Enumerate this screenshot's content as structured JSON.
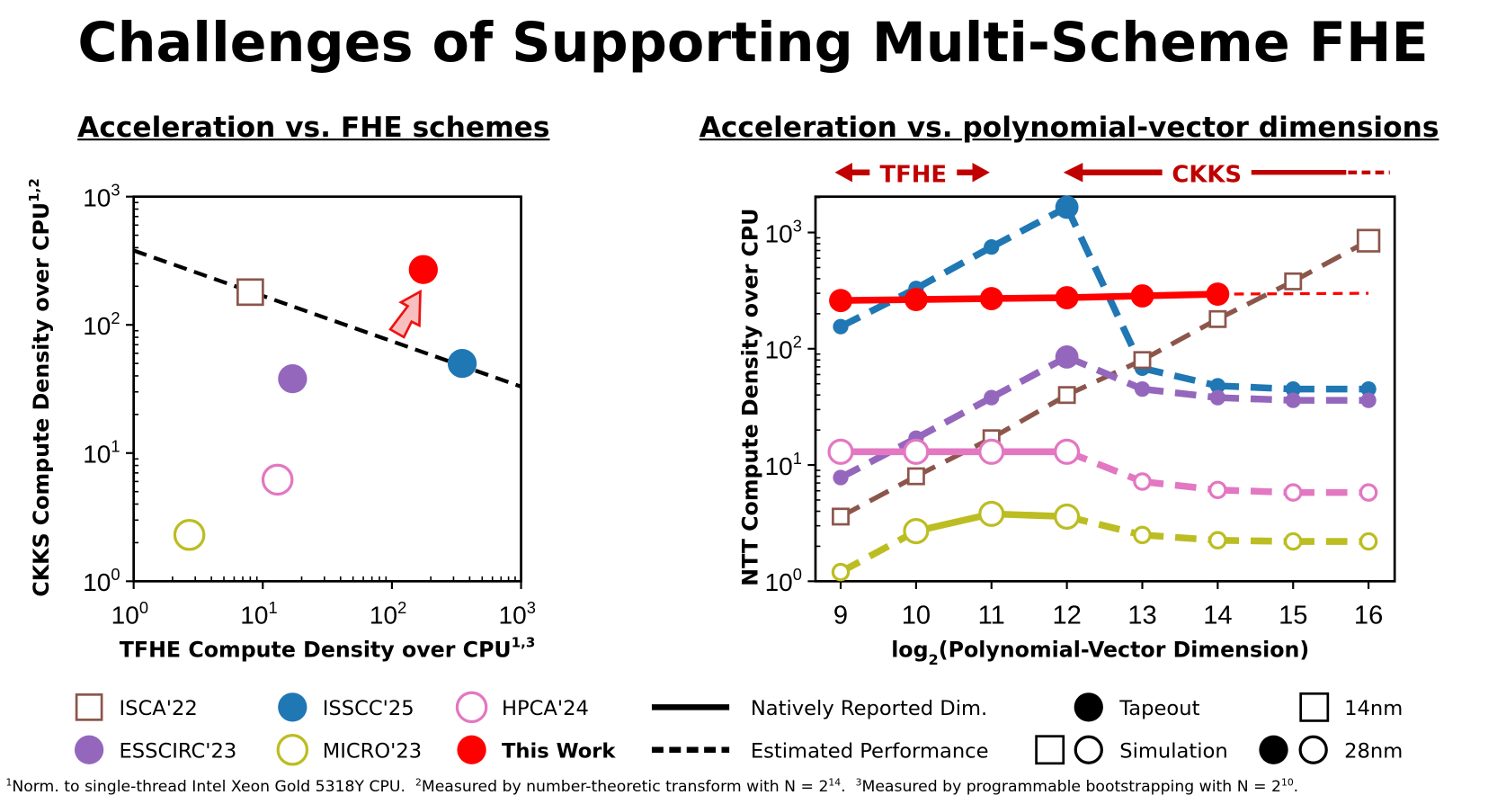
{
  "title": "Challenges of Supporting Multi-Scheme FHE",
  "left_title": "Acceleration vs. FHE schemes",
  "right_title": "Acceleration vs. polynomial-vector dimensions",
  "annot": {
    "tfhe": "TFHE",
    "ckks": "CKKS"
  },
  "colors": {
    "ISCA'22": "#8c564b",
    "ISSCC'25": "#1f77b4",
    "HPCA'24": "#e377c2",
    "ESSCIRC'23": "#9467bd",
    "MICRO'23": "#bcbd22",
    "This Work": "#ff0000"
  },
  "legend": {
    "items": [
      {
        "label": "ISCA'22",
        "marker": "square-open"
      },
      {
        "label": "ISSCC'25",
        "marker": "circle-filled"
      },
      {
        "label": "HPCA'24",
        "marker": "circle-open"
      },
      {
        "label": "ESSCIRC'23",
        "marker": "circle-filled"
      },
      {
        "label": "MICRO'23",
        "marker": "circle-open"
      },
      {
        "label": "This Work",
        "marker": "circle-filled"
      }
    ],
    "native": "Natively Reported Dim.",
    "estimated": "Estimated Performance",
    "tapeout": "Tapeout",
    "simulation": "Simulation",
    "nm14": "14nm",
    "nm28": "28nm"
  },
  "footnote": {
    "n1": "Norm. to single-thread Intel Xeon Gold 5318Y CPU.",
    "n2": "Measured by number-theoretic transform with N = 2",
    "n2exp": "14",
    "n3": "Measured by programmable bootstrapping with N = 2",
    "n3exp": "10",
    "s2": "2",
    "s3": "3"
  },
  "chart_data": [
    {
      "type": "scatter",
      "title": "Acceleration vs. FHE schemes",
      "xlabel": "TFHE Compute Density over CPU",
      "xlabel_sup": "1,3",
      "ylabel": "CKKS Compute Density over CPU",
      "ylabel_sup": "1,2",
      "xscale": "log",
      "yscale": "log",
      "xlim": [
        1,
        1000
      ],
      "ylim": [
        1,
        1000
      ],
      "ticks": [
        "10",
        "10",
        "10",
        "10"
      ],
      "tick_exps": [
        "0",
        "1",
        "2",
        "3"
      ],
      "points": [
        {
          "name": "ISCA'22",
          "x": 8,
          "y": 180,
          "marker": "square-open"
        },
        {
          "name": "ESSCIRC'23",
          "x": 17,
          "y": 38,
          "marker": "circle-filled"
        },
        {
          "name": "HPCA'24",
          "x": 13,
          "y": 6.2,
          "marker": "circle-open"
        },
        {
          "name": "MICRO'23",
          "x": 2.7,
          "y": 2.3,
          "marker": "circle-open"
        },
        {
          "name": "ISSCC'25",
          "x": 350,
          "y": 50,
          "marker": "circle-filled"
        },
        {
          "name": "This Work",
          "x": 175,
          "y": 270,
          "marker": "circle-filled"
        }
      ],
      "trend_line": {
        "x": [
          1,
          1000
        ],
        "y": [
          380,
          33
        ],
        "style": "dashed"
      }
    },
    {
      "type": "line",
      "xlabel": "log2(Polynomial-Vector Dimension)",
      "xlabel_main": "log",
      "xlabel_sub": "2",
      "xlabel_rest": "(Polynomial-Vector Dimension)",
      "ylabel": "NTT Compute Density over CPU",
      "yscale": "log",
      "ylim": [
        1,
        2000
      ],
      "x": [
        9,
        10,
        11,
        12,
        13,
        14,
        15,
        16
      ],
      "series": [
        {
          "name": "ISSCC'25",
          "values": [
            155,
            330,
            750,
            1650,
            68,
            48,
            45,
            45
          ],
          "native": [],
          "marker": "circle-filled"
        },
        {
          "name": "ISCA'22",
          "values": [
            3.6,
            8,
            17,
            40,
            80,
            180,
            380,
            850
          ],
          "native": [],
          "marker": "square-open"
        },
        {
          "name": "ESSCIRC'23",
          "values": [
            7.8,
            17,
            38,
            85,
            45,
            38,
            36,
            36
          ],
          "native": [],
          "marker": "circle-filled"
        },
        {
          "name": "HPCA'24",
          "values": [
            13,
            13,
            13,
            13,
            7.2,
            6.1,
            5.8,
            5.8
          ],
          "native": [
            9,
            10,
            11,
            12
          ],
          "marker": "circle-open"
        },
        {
          "name": "MICRO'23",
          "values": [
            1.2,
            2.7,
            3.8,
            3.6,
            2.5,
            2.25,
            2.2,
            2.2
          ],
          "native": [
            10,
            11,
            12
          ],
          "marker": "circle-open"
        },
        {
          "name": "This Work",
          "values": [
            260,
            265,
            270,
            275,
            285,
            295,
            null,
            300
          ],
          "native": [
            9,
            10,
            11,
            12,
            13,
            14
          ],
          "marker": "circle-filled"
        }
      ]
    }
  ]
}
